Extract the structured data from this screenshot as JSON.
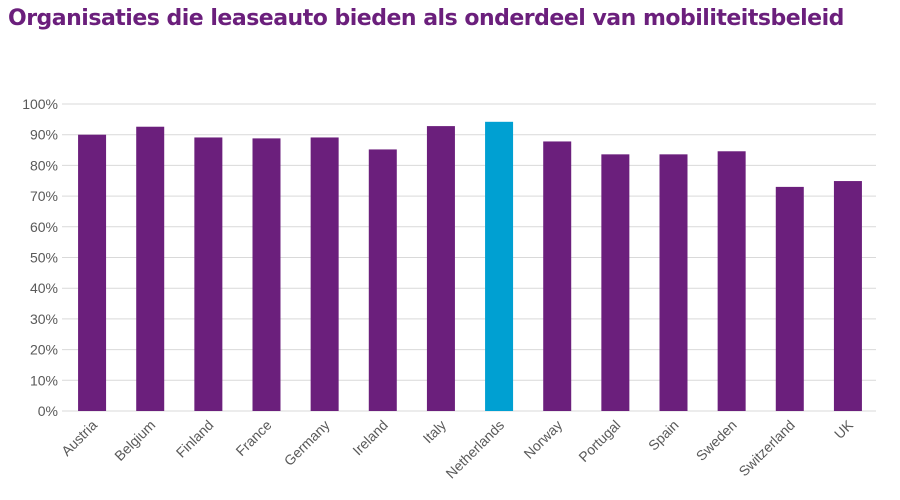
{
  "chart_data": {
    "type": "bar",
    "title": "Organisaties die leaseauto bieden als onderdeel van mobiliteitsbeleid",
    "categories": [
      "Austria",
      "Belgium",
      "Finland",
      "France",
      "Germany",
      "Ireland",
      "Italy",
      "Netherlands",
      "Norway",
      "Portugal",
      "Spain",
      "Sweden",
      "Switzerland",
      "UK"
    ],
    "values": [
      90,
      92.6,
      89.1,
      88.8,
      89.1,
      85.2,
      92.8,
      94.2,
      87.8,
      83.6,
      83.6,
      84.6,
      73,
      74.9
    ],
    "yticks": [
      "0%",
      "10%",
      "20%",
      "30%",
      "40%",
      "50%",
      "60%",
      "70%",
      "80%",
      "90%",
      "100%"
    ],
    "ylim": [
      0,
      100
    ],
    "xlabel": "",
    "ylabel": "",
    "grid": true,
    "legend": "none",
    "colors": {
      "default": "#6b1f7c",
      "highlight": "#00a0d2",
      "highlight_category": "Netherlands",
      "grid": "#d9d9d9",
      "title": "#6b1f7c"
    }
  }
}
